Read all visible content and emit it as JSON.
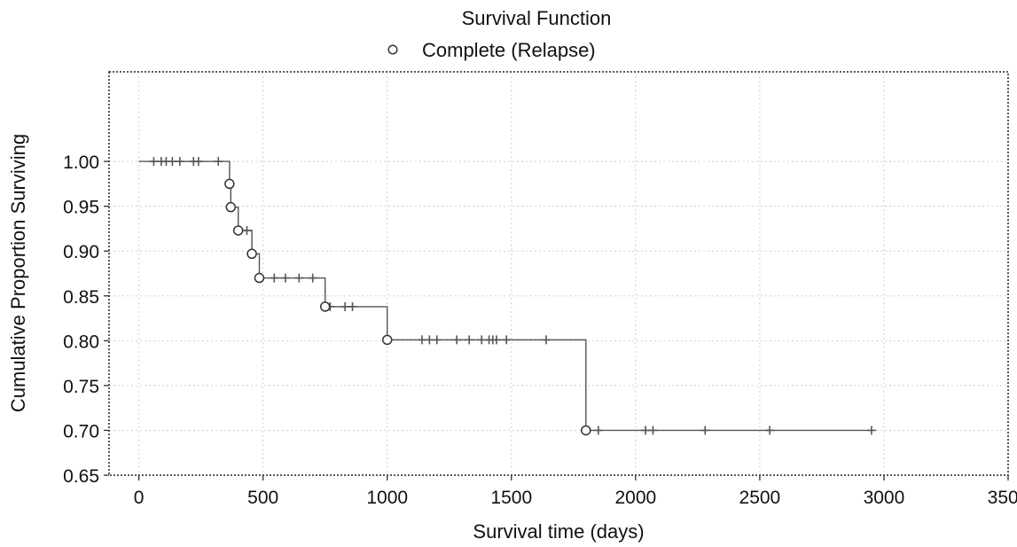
{
  "chart_data": {
    "type": "line",
    "title": "Survival Function",
    "xlabel": "Survival time (days)",
    "ylabel": "Cumulative Proportion Surviving",
    "xlim": [
      -120,
      3500
    ],
    "ylim": [
      0.65,
      1.1
    ],
    "x_ticks": [
      0,
      500,
      1000,
      1500,
      2000,
      2500,
      3000,
      3500
    ],
    "x_tick_labels": [
      "0",
      "500",
      "1000",
      "1500",
      "2000",
      "2500",
      "3000",
      "3500"
    ],
    "y_ticks": [
      0.65,
      0.7,
      0.75,
      0.8,
      0.85,
      0.9,
      0.95,
      1.0
    ],
    "y_tick_labels": [
      "0.65",
      "0.70",
      "0.75",
      "0.80",
      "0.85",
      "0.90",
      "0.95",
      "1.00"
    ],
    "grid": true,
    "legend_position": "top-center",
    "series": [
      {
        "name": "Complete (Relapse)",
        "color": "#555555",
        "marker": "circle",
        "step_points": [
          {
            "x": 0,
            "y": 1.0
          },
          {
            "x": 365,
            "y": 1.0
          },
          {
            "x": 365,
            "y": 0.975
          },
          {
            "x": 370,
            "y": 0.975
          },
          {
            "x": 370,
            "y": 0.949
          },
          {
            "x": 400,
            "y": 0.949
          },
          {
            "x": 400,
            "y": 0.923
          },
          {
            "x": 455,
            "y": 0.923
          },
          {
            "x": 455,
            "y": 0.897
          },
          {
            "x": 485,
            "y": 0.897
          },
          {
            "x": 485,
            "y": 0.87
          },
          {
            "x": 750,
            "y": 0.87
          },
          {
            "x": 750,
            "y": 0.838
          },
          {
            "x": 1000,
            "y": 0.838
          },
          {
            "x": 1000,
            "y": 0.801
          },
          {
            "x": 1800,
            "y": 0.801
          },
          {
            "x": 1800,
            "y": 0.7
          },
          {
            "x": 2950,
            "y": 0.7
          }
        ],
        "events": [
          {
            "x": 365,
            "y": 0.975
          },
          {
            "x": 370,
            "y": 0.949
          },
          {
            "x": 400,
            "y": 0.923
          },
          {
            "x": 455,
            "y": 0.897
          },
          {
            "x": 485,
            "y": 0.87
          },
          {
            "x": 750,
            "y": 0.838
          },
          {
            "x": 1000,
            "y": 0.801
          },
          {
            "x": 1800,
            "y": 0.7
          }
        ],
        "censored": [
          {
            "x": 60,
            "y": 1.0
          },
          {
            "x": 90,
            "y": 1.0
          },
          {
            "x": 110,
            "y": 1.0
          },
          {
            "x": 135,
            "y": 1.0
          },
          {
            "x": 165,
            "y": 1.0
          },
          {
            "x": 220,
            "y": 1.0
          },
          {
            "x": 240,
            "y": 1.0
          },
          {
            "x": 320,
            "y": 1.0
          },
          {
            "x": 435,
            "y": 0.923
          },
          {
            "x": 545,
            "y": 0.87
          },
          {
            "x": 590,
            "y": 0.87
          },
          {
            "x": 645,
            "y": 0.87
          },
          {
            "x": 700,
            "y": 0.87
          },
          {
            "x": 770,
            "y": 0.838
          },
          {
            "x": 830,
            "y": 0.838
          },
          {
            "x": 860,
            "y": 0.838
          },
          {
            "x": 1140,
            "y": 0.801
          },
          {
            "x": 1170,
            "y": 0.801
          },
          {
            "x": 1200,
            "y": 0.801
          },
          {
            "x": 1280,
            "y": 0.801
          },
          {
            "x": 1330,
            "y": 0.801
          },
          {
            "x": 1380,
            "y": 0.801
          },
          {
            "x": 1410,
            "y": 0.801
          },
          {
            "x": 1425,
            "y": 0.801
          },
          {
            "x": 1440,
            "y": 0.801
          },
          {
            "x": 1480,
            "y": 0.801
          },
          {
            "x": 1640,
            "y": 0.801
          },
          {
            "x": 1850,
            "y": 0.7
          },
          {
            "x": 2040,
            "y": 0.7
          },
          {
            "x": 2070,
            "y": 0.7
          },
          {
            "x": 2280,
            "y": 0.7
          },
          {
            "x": 2540,
            "y": 0.7
          },
          {
            "x": 2950,
            "y": 0.7
          }
        ]
      }
    ]
  }
}
